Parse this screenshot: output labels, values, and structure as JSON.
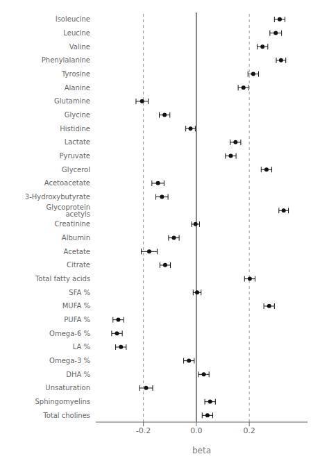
{
  "chart_data": {
    "type": "forest",
    "xlabel": "beta",
    "categories": [
      "Isoleucine",
      "Leucine",
      "Valine",
      "Phenylalanine",
      "Tyrosine",
      "Alanine",
      "Glutamine",
      "Glycine",
      "Histidine",
      "Lactate",
      "Pyruvate",
      "Glycerol",
      "Acetoacetate",
      "3-Hydroxybutyrate",
      "Glycoprotein acetyls",
      "Creatinine",
      "Albumin",
      "Acetate",
      "Citrate",
      "Total fatty acids",
      "SFA %",
      "MUFA %",
      "PUFA %",
      "Omega-6 %",
      "LA %",
      "Omega-3 %",
      "DHA %",
      "Unsaturation",
      "Sphingomyelins",
      "Total cholines"
    ],
    "values": [
      0.315,
      0.3,
      0.25,
      0.32,
      0.215,
      0.178,
      -0.205,
      -0.12,
      -0.022,
      0.148,
      0.13,
      0.265,
      -0.145,
      -0.13,
      0.33,
      -0.003,
      -0.085,
      -0.178,
      -0.118,
      0.202,
      0.003,
      0.275,
      -0.295,
      -0.3,
      -0.285,
      -0.028,
      0.028,
      -0.19,
      0.052,
      0.042
    ],
    "ci_low": [
      0.295,
      0.278,
      0.23,
      0.302,
      0.195,
      0.158,
      -0.228,
      -0.14,
      -0.04,
      0.128,
      0.11,
      0.245,
      -0.168,
      -0.153,
      0.312,
      -0.018,
      -0.105,
      -0.208,
      -0.138,
      0.182,
      -0.012,
      0.255,
      -0.315,
      -0.32,
      -0.305,
      -0.048,
      0.008,
      -0.215,
      0.032,
      0.022
    ],
    "ci_high": [
      0.335,
      0.322,
      0.27,
      0.338,
      0.235,
      0.198,
      -0.182,
      -0.1,
      -0.004,
      0.168,
      0.15,
      0.285,
      -0.122,
      -0.107,
      0.348,
      0.012,
      -0.065,
      -0.148,
      -0.098,
      0.222,
      0.018,
      0.295,
      -0.275,
      -0.28,
      -0.265,
      -0.008,
      0.048,
      -0.165,
      0.072,
      0.062
    ],
    "xlim": [
      -0.38,
      0.42
    ],
    "xticks": [
      -0.2,
      {
        "value": 0.0,
        "label": "0.0"
      },
      0.2
    ],
    "reference_lines": [
      {
        "value": -0.2,
        "line_style": "dashed"
      },
      {
        "value": 0.2,
        "line_style": "dashed"
      },
      {
        "value": 0.0,
        "line_style": "solid"
      }
    ],
    "color": "#111111",
    "marker": "circle",
    "grid": false
  }
}
